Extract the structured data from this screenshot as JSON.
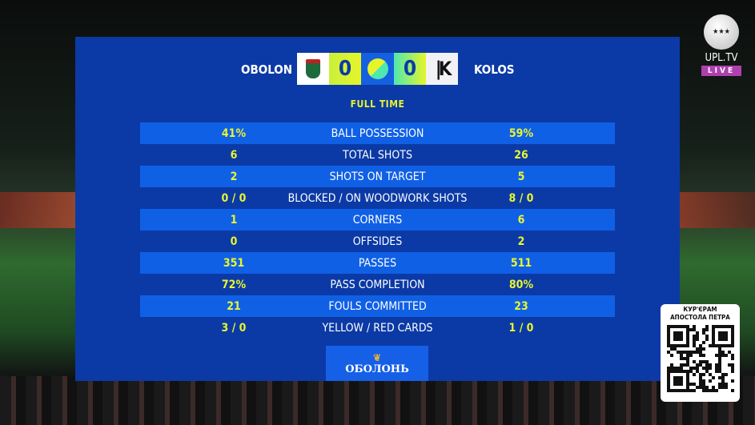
{
  "match": {
    "home_team": "OBOLON",
    "away_team": "KOLOS",
    "home_score": "0",
    "away_score": "0",
    "status": "FULL TIME"
  },
  "stats": [
    {
      "label": "BALL POSSESSION",
      "home": "41%",
      "away": "59%"
    },
    {
      "label": "TOTAL SHOTS",
      "home": "6",
      "away": "26"
    },
    {
      "label": "SHOTS ON TARGET",
      "home": "2",
      "away": "5"
    },
    {
      "label": "BLOCKED / ON WOODWORK SHOTS",
      "home": "0 / 0",
      "away": "8 / 0"
    },
    {
      "label": "CORNERS",
      "home": "1",
      "away": "6"
    },
    {
      "label": "OFFSIDES",
      "home": "0",
      "away": "2"
    },
    {
      "label": "PASSES",
      "home": "351",
      "away": "511"
    },
    {
      "label": "PASS COMPLETION",
      "home": "72%",
      "away": "80%"
    },
    {
      "label": "FOULS COMMITTED",
      "home": "21",
      "away": "23"
    },
    {
      "label": "YELLOW / RED CARDS",
      "home": "3 / 0",
      "away": "1 / 0"
    }
  ],
  "sponsor": {
    "name": "ОБОЛОНЬ"
  },
  "broadcaster": {
    "name": "UPL.TV",
    "badge": "LIVE"
  },
  "qr": {
    "caption_line1": "КУР'ЄРАМ",
    "caption_line2": "АПОСТОЛА ПЕТРА"
  },
  "colors": {
    "panel": "#0b3aa6",
    "highlight_row": "#1060e6",
    "accent_yellow": "#e8f530",
    "live_badge": "#b040b0"
  }
}
